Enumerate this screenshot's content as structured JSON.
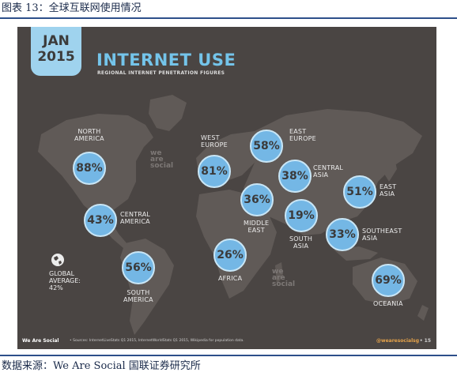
{
  "caption": "图表 13：全球互联网使用情况",
  "source": "数据来源：We Are Social  国联证券研究所",
  "slide": {
    "month": "JAN",
    "year": "2015",
    "title": "INTERNET USE",
    "subtitle": "REGIONAL INTERNET PENETRATION FIGURES",
    "watermark": [
      "we",
      "are",
      "social"
    ],
    "global_label_1": "GLOBAL",
    "global_label_2": "AVERAGE:",
    "global_value": "42%",
    "footer_brand": "We Are Social",
    "footer_source": "•  Sources: InternetLiveStats Q1 2015, InternetWorldStats Q1 2015, Wikipedia for population data.",
    "footer_handle": "@wearesocialsg",
    "footer_page": "•  15"
  },
  "regions": [
    {
      "id": "north-america",
      "value": "88%",
      "label_1": "NORTH",
      "label_2": "AMERICA"
    },
    {
      "id": "central-america",
      "value": "43%",
      "label_1": "CENTRAL",
      "label_2": "AMERICA"
    },
    {
      "id": "south-america",
      "value": "56%",
      "label_1": "SOUTH",
      "label_2": "AMERICA"
    },
    {
      "id": "west-europe",
      "value": "81%",
      "label_1": "WEST",
      "label_2": "EUROPE"
    },
    {
      "id": "east-europe",
      "value": "58%",
      "label_1": "EAST",
      "label_2": "EUROPE"
    },
    {
      "id": "central-asia",
      "value": "38%",
      "label_1": "CENTRAL",
      "label_2": "ASIA"
    },
    {
      "id": "middle-east",
      "value": "36%",
      "label_1": "MIDDLE",
      "label_2": "EAST"
    },
    {
      "id": "south-asia",
      "value": "19%",
      "label_1": "SOUTH",
      "label_2": "ASIA"
    },
    {
      "id": "east-asia",
      "value": "51%",
      "label_1": "EAST",
      "label_2": "ASIA"
    },
    {
      "id": "southeast-asia",
      "value": "33%",
      "label_1": "SOUTHEAST",
      "label_2": "ASIA"
    },
    {
      "id": "africa",
      "value": "26%",
      "label_1": "AFRICA",
      "label_2": ""
    },
    {
      "id": "oceania",
      "value": "69%",
      "label_1": "OCEANIA",
      "label_2": ""
    }
  ],
  "colors": {
    "background": "#4a4543",
    "land": "#605a57",
    "bubble": "#74b7e5",
    "accent_title": "#74c4ea",
    "date_badge": "#9fd3ee"
  }
}
